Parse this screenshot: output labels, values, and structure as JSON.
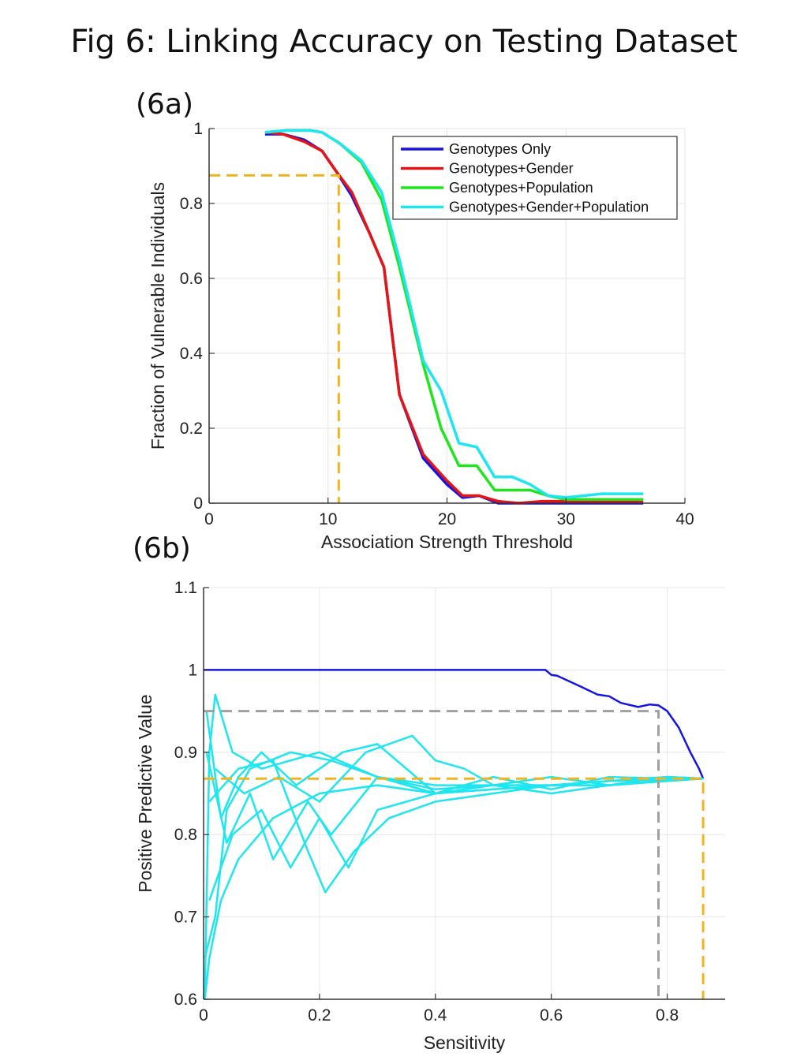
{
  "figure_title": "Fig 6: Linking Accuracy on Testing Dataset",
  "colors": {
    "genotypes_only": "#1414e6",
    "genotypes_gender": "#e61414",
    "genotypes_population": "#1ee61e",
    "genotypes_gender_population": "#1ee6f0",
    "ref_orange": "#f0b41e",
    "ref_gray": "#a0a0a0",
    "grid": "#e6e6e6"
  },
  "chart_data": [
    {
      "panel_label": "(6a)",
      "type": "line",
      "title": "",
      "xlabel": "Association Strength Threshold",
      "ylabel": "Fraction of Vulnerable Individuals",
      "xlim": [
        0,
        40
      ],
      "ylim": [
        0,
        1
      ],
      "xticks": [
        "0",
        "10",
        "20",
        "30",
        "40"
      ],
      "yticks": [
        "0",
        "0.2",
        "0.4",
        "0.6",
        "0.8",
        "1"
      ],
      "grid": true,
      "legend_position": "top-right",
      "series": [
        {
          "name": "Genotypes Only",
          "color_key": "genotypes_only",
          "x": [
            4.7,
            6.2,
            8.0,
            9.5,
            10.7,
            12.0,
            13.5,
            14.7,
            16.0,
            18.0,
            20.0,
            21.3,
            22.7,
            24.3,
            26.0,
            28.0,
            30.0,
            33.0,
            36.5
          ],
          "y": [
            0.985,
            0.985,
            0.97,
            0.94,
            0.885,
            0.82,
            0.72,
            0.63,
            0.29,
            0.12,
            0.05,
            0.015,
            0.02,
            0.0,
            0.0,
            0.0,
            0.0,
            0.0,
            0.0
          ]
        },
        {
          "name": "Genotypes+Gender",
          "color_key": "genotypes_gender",
          "x": [
            4.7,
            6.2,
            8.0,
            9.5,
            10.7,
            12.0,
            13.5,
            14.7,
            16.0,
            18.0,
            20.0,
            21.3,
            22.7,
            24.3,
            26.0,
            28.0,
            30.0,
            33.0,
            36.5
          ],
          "y": [
            0.99,
            0.985,
            0.965,
            0.94,
            0.885,
            0.83,
            0.72,
            0.63,
            0.29,
            0.13,
            0.06,
            0.02,
            0.02,
            0.005,
            0.0,
            0.005,
            0.005,
            0.005,
            0.005
          ]
        },
        {
          "name": "Genotypes+Population",
          "color_key": "genotypes_population",
          "x": [
            4.7,
            6.5,
            8.5,
            9.5,
            11.0,
            12.8,
            14.5,
            16.0,
            18.0,
            19.5,
            21.0,
            22.5,
            24.0,
            25.5,
            27.0,
            28.5,
            30.0,
            33.0,
            36.5
          ],
          "y": [
            0.99,
            0.995,
            0.995,
            0.99,
            0.96,
            0.91,
            0.81,
            0.63,
            0.37,
            0.2,
            0.1,
            0.1,
            0.035,
            0.035,
            0.035,
            0.02,
            0.01,
            0.01,
            0.01
          ]
        },
        {
          "name": "Genotypes+Gender+Population",
          "color_key": "genotypes_gender_population",
          "x": [
            4.7,
            6.5,
            8.5,
            9.5,
            11.0,
            12.8,
            14.5,
            16.0,
            18.0,
            19.5,
            21.0,
            22.5,
            24.0,
            25.5,
            27.0,
            28.5,
            30.0,
            33.0,
            36.5
          ],
          "y": [
            0.99,
            0.995,
            0.995,
            0.99,
            0.96,
            0.915,
            0.83,
            0.65,
            0.38,
            0.3,
            0.16,
            0.15,
            0.07,
            0.07,
            0.05,
            0.02,
            0.015,
            0.025,
            0.025
          ]
        }
      ],
      "reference_lines": [
        {
          "color_key": "ref_orange",
          "points": [
            [
              0,
              0.875
            ],
            [
              10.9,
              0.875
            ],
            [
              10.9,
              0
            ]
          ]
        }
      ]
    },
    {
      "panel_label": "(6b)",
      "type": "line",
      "title": "",
      "xlabel": "Sensitivity",
      "ylabel": "Positive Predictive Value",
      "xlim": [
        0,
        0.9
      ],
      "ylim": [
        0.6,
        1.1
      ],
      "xticks": [
        "0",
        "0.2",
        "0.4",
        "0.6",
        "0.8"
      ],
      "yticks": [
        "0.6",
        "0.7",
        "0.8",
        "0.9",
        "1",
        "1.1"
      ],
      "grid": true,
      "legend_position": "none",
      "series": [
        {
          "name": "",
          "color_key": "genotypes_only",
          "x": [
            0.0,
            0.1,
            0.3,
            0.5,
            0.59,
            0.6,
            0.61,
            0.65,
            0.68,
            0.7,
            0.72,
            0.75,
            0.77,
            0.785,
            0.8,
            0.82,
            0.84,
            0.855,
            0.862
          ],
          "y": [
            1.0,
            1.0,
            1.0,
            1.0,
            1.0,
            0.994,
            0.993,
            0.98,
            0.97,
            0.968,
            0.96,
            0.955,
            0.958,
            0.957,
            0.95,
            0.93,
            0.9,
            0.88,
            0.868
          ]
        },
        {
          "name": "",
          "color_key": "genotypes_gender_population",
          "x": [
            0.002,
            0.01,
            0.02,
            0.05,
            0.1,
            0.2,
            0.3,
            0.4,
            0.5,
            0.6,
            0.7,
            0.8,
            0.862
          ],
          "y": [
            0.6,
            0.9,
            0.97,
            0.9,
            0.88,
            0.9,
            0.87,
            0.855,
            0.86,
            0.86,
            0.86,
            0.865,
            0.868
          ]
        },
        {
          "name": "",
          "color_key": "genotypes_gender_population",
          "x": [
            0.002,
            0.01,
            0.03,
            0.06,
            0.12,
            0.2,
            0.3,
            0.4,
            0.5,
            0.6,
            0.7,
            0.8,
            0.862
          ],
          "y": [
            0.6,
            0.65,
            0.72,
            0.77,
            0.82,
            0.85,
            0.86,
            0.85,
            0.855,
            0.86,
            0.86,
            0.865,
            0.868
          ]
        },
        {
          "name": "",
          "color_key": "genotypes_gender_population",
          "x": [
            0.002,
            0.02,
            0.04,
            0.08,
            0.15,
            0.22,
            0.3,
            0.4,
            0.5,
            0.6,
            0.7,
            0.8,
            0.862
          ],
          "y": [
            0.65,
            0.7,
            0.83,
            0.88,
            0.9,
            0.89,
            0.87,
            0.85,
            0.86,
            0.86,
            0.865,
            0.866,
            0.868
          ]
        },
        {
          "name": "",
          "color_key": "genotypes_gender_population",
          "x": [
            0.005,
            0.03,
            0.06,
            0.1,
            0.16,
            0.24,
            0.3,
            0.4,
            0.5,
            0.6,
            0.7,
            0.8,
            0.862
          ],
          "y": [
            0.95,
            0.82,
            0.87,
            0.9,
            0.86,
            0.9,
            0.91,
            0.85,
            0.87,
            0.855,
            0.87,
            0.868,
            0.868
          ]
        },
        {
          "name": "",
          "color_key": "genotypes_gender_population",
          "x": [
            0.005,
            0.04,
            0.08,
            0.12,
            0.18,
            0.22,
            0.3,
            0.4,
            0.5,
            0.6,
            0.7,
            0.8,
            0.862
          ],
          "y": [
            0.9,
            0.79,
            0.85,
            0.77,
            0.84,
            0.8,
            0.87,
            0.86,
            0.86,
            0.87,
            0.86,
            0.87,
            0.868
          ]
        },
        {
          "name": "",
          "color_key": "genotypes_gender_population",
          "x": [
            0.01,
            0.05,
            0.1,
            0.15,
            0.2,
            0.25,
            0.3,
            0.35,
            0.4,
            0.5,
            0.6,
            0.7,
            0.8,
            0.862
          ],
          "y": [
            0.72,
            0.8,
            0.83,
            0.76,
            0.82,
            0.76,
            0.83,
            0.84,
            0.85,
            0.855,
            0.86,
            0.865,
            0.87,
            0.868
          ]
        },
        {
          "name": "",
          "color_key": "genotypes_gender_population",
          "x": [
            0.01,
            0.06,
            0.12,
            0.18,
            0.21,
            0.26,
            0.32,
            0.4,
            0.5,
            0.6,
            0.7,
            0.8,
            0.862
          ],
          "y": [
            0.84,
            0.88,
            0.89,
            0.78,
            0.73,
            0.78,
            0.82,
            0.84,
            0.85,
            0.86,
            0.865,
            0.87,
            0.868
          ]
        },
        {
          "name": "",
          "color_key": "genotypes_gender_population",
          "x": [
            0.02,
            0.07,
            0.13,
            0.2,
            0.28,
            0.36,
            0.4,
            0.45,
            0.5,
            0.6,
            0.7,
            0.8,
            0.862
          ],
          "y": [
            0.88,
            0.85,
            0.87,
            0.84,
            0.9,
            0.92,
            0.89,
            0.88,
            0.86,
            0.85,
            0.86,
            0.87,
            0.868
          ]
        }
      ],
      "reference_lines": [
        {
          "color_key": "ref_gray",
          "points": [
            [
              0,
              0.95
            ],
            [
              0.785,
              0.95
            ],
            [
              0.785,
              0.6
            ]
          ]
        },
        {
          "color_key": "ref_orange",
          "points": [
            [
              0,
              0.868
            ],
            [
              0.862,
              0.868
            ],
            [
              0.862,
              0.6
            ]
          ]
        }
      ]
    }
  ]
}
